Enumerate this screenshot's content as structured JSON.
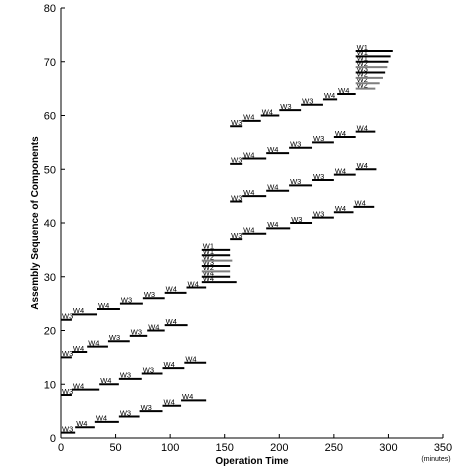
{
  "chart_data": {
    "type": "gantt",
    "title": "",
    "xlabel": "Operation Time",
    "x_unit": "(minutes)",
    "ylabel": "Assembly Sequence of Components",
    "xlim": [
      0,
      350
    ],
    "ylim": [
      0,
      80
    ],
    "xticks": [
      0,
      50,
      100,
      150,
      200,
      250,
      300,
      350
    ],
    "yticks": [
      0,
      10,
      20,
      30,
      40,
      50,
      60,
      70,
      80
    ],
    "grid": false,
    "colors": {
      "W1": "#000000",
      "W2": "#7f7f7f",
      "W3": "#000000",
      "W4": "#000000"
    },
    "bars": [
      {
        "worker": "W3",
        "x": [
          0,
          13
        ],
        "y": 1
      },
      {
        "worker": "W4",
        "x": [
          13,
          31
        ],
        "y": 2
      },
      {
        "worker": "W4",
        "x": [
          31,
          53
        ],
        "y": 3
      },
      {
        "worker": "W3",
        "x": [
          53,
          72
        ],
        "y": 4
      },
      {
        "worker": "W3",
        "x": [
          72,
          93
        ],
        "y": 5
      },
      {
        "worker": "W4",
        "x": [
          93,
          110
        ],
        "y": 6
      },
      {
        "worker": "W4",
        "x": [
          110,
          133
        ],
        "y": 7
      },
      {
        "worker": "W3",
        "x": [
          0,
          10
        ],
        "y": 8
      },
      {
        "worker": "W4",
        "x": [
          10,
          35
        ],
        "y": 9
      },
      {
        "worker": "W4",
        "x": [
          35,
          53
        ],
        "y": 10
      },
      {
        "worker": "W3",
        "x": [
          53,
          74
        ],
        "y": 11
      },
      {
        "worker": "W3",
        "x": [
          74,
          93
        ],
        "y": 12
      },
      {
        "worker": "W4",
        "x": [
          93,
          113
        ],
        "y": 13
      },
      {
        "worker": "W4",
        "x": [
          113,
          133
        ],
        "y": 14
      },
      {
        "worker": "W3",
        "x": [
          0,
          10
        ],
        "y": 15
      },
      {
        "worker": "W4",
        "x": [
          10,
          24
        ],
        "y": 16
      },
      {
        "worker": "W4",
        "x": [
          24,
          43
        ],
        "y": 17
      },
      {
        "worker": "W3",
        "x": [
          43,
          63
        ],
        "y": 18
      },
      {
        "worker": "W3",
        "x": [
          63,
          79
        ],
        "y": 19
      },
      {
        "worker": "W4",
        "x": [
          79,
          95
        ],
        "y": 20
      },
      {
        "worker": "W4",
        "x": [
          95,
          116
        ],
        "y": 21
      },
      {
        "worker": "W3",
        "x": [
          0,
          10
        ],
        "y": 22
      },
      {
        "worker": "W4",
        "x": [
          10,
          33
        ],
        "y": 23
      },
      {
        "worker": "W4",
        "x": [
          33,
          54
        ],
        "y": 24
      },
      {
        "worker": "W3",
        "x": [
          54,
          75
        ],
        "y": 25
      },
      {
        "worker": "W3",
        "x": [
          75,
          95
        ],
        "y": 26
      },
      {
        "worker": "W4",
        "x": [
          95,
          115
        ],
        "y": 27
      },
      {
        "worker": "W4",
        "x": [
          115,
          133
        ],
        "y": 28
      },
      {
        "worker": "W4",
        "x": [
          129,
          161
        ],
        "y": 29
      },
      {
        "worker": "W4",
        "x": [
          129,
          155
        ],
        "y": 30
      },
      {
        "worker": "W2",
        "x": [
          129,
          155
        ],
        "y": 31
      },
      {
        "worker": "W3",
        "x": [
          129,
          155
        ],
        "y": 32
      },
      {
        "worker": "W2",
        "x": [
          129,
          157
        ],
        "y": 33
      },
      {
        "worker": "W1",
        "x": [
          129,
          155
        ],
        "y": 34
      },
      {
        "worker": "W1",
        "x": [
          129,
          155
        ],
        "y": 35
      },
      {
        "worker": "W3",
        "x": [
          155,
          166
        ],
        "y": 37
      },
      {
        "worker": "W4",
        "x": [
          166,
          188
        ],
        "y": 38
      },
      {
        "worker": "W4",
        "x": [
          188,
          210
        ],
        "y": 39
      },
      {
        "worker": "W3",
        "x": [
          210,
          230
        ],
        "y": 40
      },
      {
        "worker": "W3",
        "x": [
          230,
          250
        ],
        "y": 41
      },
      {
        "worker": "W4",
        "x": [
          250,
          268
        ],
        "y": 42
      },
      {
        "worker": "W4",
        "x": [
          268,
          287
        ],
        "y": 43
      },
      {
        "worker": "W3",
        "x": [
          155,
          166
        ],
        "y": 44
      },
      {
        "worker": "W4",
        "x": [
          166,
          188
        ],
        "y": 45
      },
      {
        "worker": "W4",
        "x": [
          188,
          209
        ],
        "y": 46
      },
      {
        "worker": "W3",
        "x": [
          209,
          230
        ],
        "y": 47
      },
      {
        "worker": "W3",
        "x": [
          230,
          250
        ],
        "y": 48
      },
      {
        "worker": "W4",
        "x": [
          250,
          270
        ],
        "y": 49
      },
      {
        "worker": "W4",
        "x": [
          270,
          289
        ],
        "y": 50
      },
      {
        "worker": "W3",
        "x": [
          155,
          166
        ],
        "y": 51
      },
      {
        "worker": "W4",
        "x": [
          166,
          188
        ],
        "y": 52
      },
      {
        "worker": "W4",
        "x": [
          188,
          209
        ],
        "y": 53
      },
      {
        "worker": "W3",
        "x": [
          209,
          230
        ],
        "y": 54
      },
      {
        "worker": "W3",
        "x": [
          230,
          250
        ],
        "y": 55
      },
      {
        "worker": "W4",
        "x": [
          250,
          270
        ],
        "y": 56
      },
      {
        "worker": "W4",
        "x": [
          270,
          288
        ],
        "y": 57
      },
      {
        "worker": "W3",
        "x": [
          155,
          166
        ],
        "y": 58
      },
      {
        "worker": "W4",
        "x": [
          166,
          183
        ],
        "y": 59
      },
      {
        "worker": "W4",
        "x": [
          183,
          200
        ],
        "y": 60
      },
      {
        "worker": "W3",
        "x": [
          200,
          220
        ],
        "y": 61
      },
      {
        "worker": "W3",
        "x": [
          220,
          240
        ],
        "y": 62
      },
      {
        "worker": "W4",
        "x": [
          240,
          253
        ],
        "y": 63
      },
      {
        "worker": "W4",
        "x": [
          253,
          270
        ],
        "y": 64
      },
      {
        "worker": "W2",
        "x": [
          270,
          288
        ],
        "y": 65
      },
      {
        "worker": "W2",
        "x": [
          270,
          292
        ],
        "y": 66
      },
      {
        "worker": "W2",
        "x": [
          270,
          295
        ],
        "y": 67
      },
      {
        "worker": "W3",
        "x": [
          270,
          297
        ],
        "y": 68
      },
      {
        "worker": "W2",
        "x": [
          270,
          299
        ],
        "y": 69
      },
      {
        "worker": "W1",
        "x": [
          270,
          300
        ],
        "y": 70
      },
      {
        "worker": "W1",
        "x": [
          270,
          302
        ],
        "y": 71
      },
      {
        "worker": "W1",
        "x": [
          270,
          304
        ],
        "y": 72
      }
    ]
  }
}
